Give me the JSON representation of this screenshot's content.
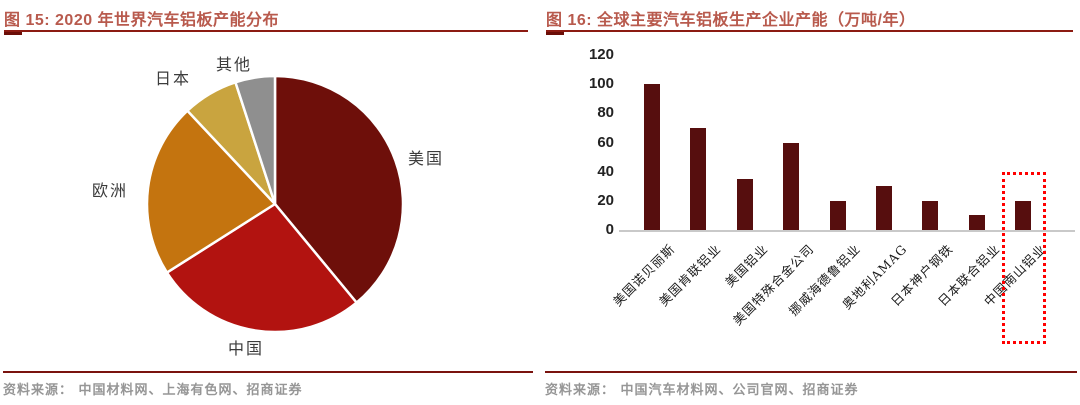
{
  "left_figure": {
    "title": "图 15:  2020 年世界汽车铝板产能分布",
    "source": "资料来源： 中国材料网、上海有色网、招商证券"
  },
  "right_figure": {
    "title": "图 16:  全球主要汽车铝板生产企业产能（万吨/年）",
    "source": "资料来源： 中国汽车材料网、公司官网、招商证券"
  },
  "colors": {
    "title_text": "#B85A4D",
    "title_underline": "#8C1B12",
    "source_rule": "#7A130E",
    "source_text": "#969696",
    "bar_fill": "#560E0E",
    "axis_baseline": "#C9C9C9",
    "highlight_box": "#FF0000",
    "pie_label_text": "#3C3C3C"
  },
  "chart_data": [
    {
      "type": "pie",
      "title": "2020 年世界汽车铝板产能分布",
      "labels": [
        "美国",
        "中国",
        "欧洲",
        "日本",
        "其他"
      ],
      "values_pct": [
        39,
        27,
        22,
        7,
        5
      ],
      "slice_colors": [
        "#6E0F0A",
        "#B21310",
        "#C4740F",
        "#C9A43F",
        "#8F8F8F"
      ],
      "start_angle_deg": 0,
      "direction": "clockwise",
      "legend": "none",
      "label_position": "outside"
    },
    {
      "type": "bar",
      "title": "全球主要汽车铝板生产企业产能（万吨/年）",
      "unit": "万吨/年",
      "categories": [
        "美国诺贝丽斯",
        "美国肯联铝业",
        "美国铝业",
        "美国特殊合金公司",
        "挪威海德鲁铝业",
        "奥地利AMAG",
        "日本神户钢铁",
        "日本联合铝业",
        "中国南山铝业"
      ],
      "values": [
        100,
        70,
        35,
        60,
        20,
        30,
        20,
        10,
        20
      ],
      "yticks": [
        0,
        20,
        40,
        60,
        80,
        100,
        120
      ],
      "ylim": [
        0,
        120
      ],
      "grid": false,
      "legend": "none",
      "x_label_rotation_deg": -45,
      "highlight": {
        "category_index": 8,
        "category": "中国南山铝业",
        "style": "red-dotted-box",
        "box_top_value": 40
      }
    }
  ]
}
